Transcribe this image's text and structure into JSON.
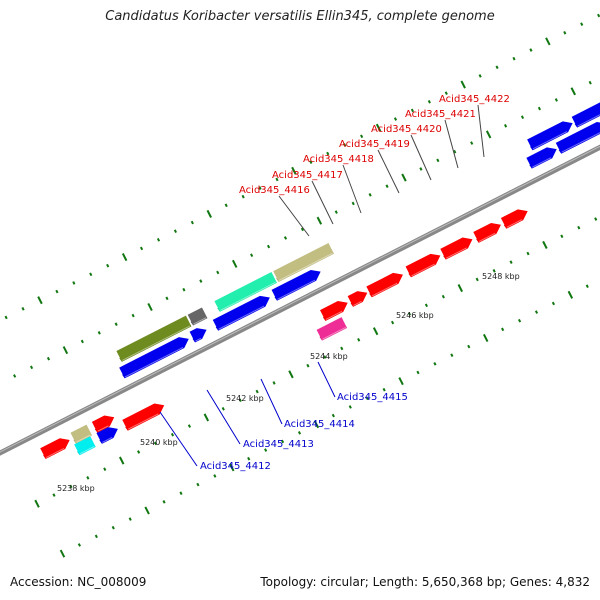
{
  "title": "Candidatus Koribacter versatilis Ellin345, complete genome",
  "accession": "Accession: NC_008009",
  "topology": "Topology: circular; Length: 5,650,368 bp; Genes: 4,832",
  "colors": {
    "forward_label": "#dd0000",
    "reverse_label": "#0000cc",
    "tick": "#117711",
    "backbone": "#888888",
    "red": "#ff0000",
    "blue": "#0000ee",
    "pink": "#ee2e96",
    "cyan": "#00eeee",
    "khaki": "#c2bd80",
    "olive": "#6e8b1f",
    "gray": "#666666",
    "aquamarine": "#22eead"
  },
  "scale_labels": [
    "5238 kbp",
    "5240 kbp",
    "5242 kbp",
    "5244 kbp",
    "5246 kbp",
    "5248 kbp"
  ],
  "forward_labels": [
    "Acid345_4416",
    "Acid345_4417",
    "Acid345_4418",
    "Acid345_4419",
    "Acid345_4420",
    "Acid345_4421",
    "Acid345_4422"
  ],
  "reverse_labels": [
    "Acid345_4412",
    "Acid345_4413",
    "Acid345_4414",
    "Acid345_4415"
  ]
}
